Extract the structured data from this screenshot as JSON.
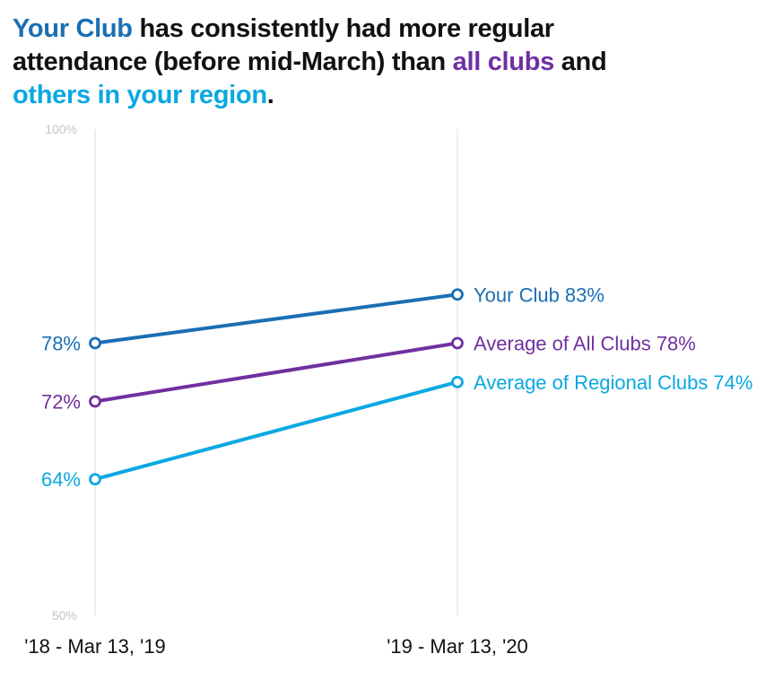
{
  "title": {
    "part1": "Your Club",
    "part2": " has consistently had more regular attendance (before mid-March) than ",
    "part3": "all clubs",
    "part4": " and ",
    "part5": "others in your region",
    "part6": "."
  },
  "chart_data": {
    "type": "line",
    "categories": [
      "'18 - Mar 13, '19",
      "'19 - Mar 13, '20"
    ],
    "ylim": [
      50,
      100
    ],
    "y_ticks": [
      {
        "value": 100,
        "label": "100%"
      },
      {
        "value": 50,
        "label": "50%"
      }
    ],
    "grid": "vertical",
    "series": [
      {
        "name": "Your Club",
        "values": [
          78,
          83
        ],
        "color": "#1a6fb4",
        "start_label": "78%",
        "end_label": "Your Club 83%"
      },
      {
        "name": "Average of All Clubs",
        "values": [
          72,
          78
        ],
        "color": "#7030a0",
        "start_label": "72%",
        "end_label": "Average of All Clubs 78%"
      },
      {
        "name": "Average of Regional Clubs",
        "values": [
          64,
          74
        ],
        "color": "#0aa8e2",
        "start_label": "64%",
        "end_label": "Average of Regional Clubs 74%"
      }
    ]
  }
}
